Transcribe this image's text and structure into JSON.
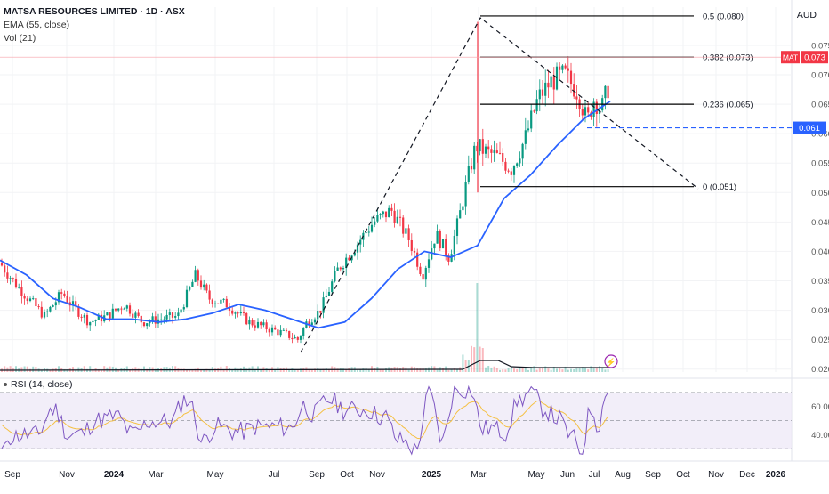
{
  "header": {
    "title": "MATSA RESOURCES LIMITED · 1D · ASX",
    "ema_label": "EMA (55, close)",
    "vol_label": "Vol (21)",
    "currency": "AUD"
  },
  "rsi": {
    "label": "RSI (14, close)",
    "ticks": [
      "60.00",
      "40.00"
    ],
    "upper": 70,
    "lower": 30,
    "mid": 50,
    "range": [
      25,
      75
    ]
  },
  "price_axis": {
    "ticks": [
      "0.075",
      "0.070",
      "0.065",
      "0.060",
      "0.055",
      "0.050",
      "0.045",
      "0.040",
      "0.035",
      "0.030",
      "0.025",
      "0.020"
    ],
    "tick_values": [
      0.075,
      0.07,
      0.065,
      0.06,
      0.055,
      0.05,
      0.045,
      0.04,
      0.035,
      0.03,
      0.025,
      0.02
    ],
    "range": [
      0.0195,
      0.0815
    ]
  },
  "time_axis": {
    "labels": [
      "Sep",
      "Nov",
      "2024",
      "Mar",
      "May",
      "Jul",
      "Sep",
      "Oct",
      "Nov",
      "2025",
      "Mar",
      "May",
      "Jun",
      "Jul",
      "Aug",
      "Sep",
      "Oct",
      "Nov",
      "Dec",
      "2026"
    ],
    "bold": [
      "2024",
      "2025",
      "2026"
    ]
  },
  "badges": {
    "ticker": "MAT",
    "last_price": "0.073",
    "horizontal_line": "0.061"
  },
  "colors": {
    "up": "#089981",
    "down": "#f23645",
    "ema": "#2962ff",
    "rsi": "#7e57c2",
    "rsi_ma": "#f5c042",
    "fib_line": "#000000",
    "dashed_level": "#2962ff",
    "rsi_band": "#ede7f6"
  },
  "chart_data": {
    "type": "candlestick",
    "title": "MATSA RESOURCES LIMITED · 1D · ASX",
    "ylabel": "AUD",
    "ylim": [
      0.02,
      0.08
    ],
    "series": [
      {
        "name": "EMA (55, close)",
        "points": [
          [
            "Aug 2023",
            0.0385
          ],
          [
            "Sep 2023",
            0.036
          ],
          [
            "Oct 2023",
            0.032
          ],
          [
            "Nov 2023",
            0.0305
          ],
          [
            "Dec 2023",
            0.0285
          ],
          [
            "Jan 2024",
            0.0285
          ],
          [
            "Feb 2024",
            0.028
          ],
          [
            "Mar 2024",
            0.0285
          ],
          [
            "Apr 2024",
            0.0295
          ],
          [
            "May 2024",
            0.031
          ],
          [
            "Jun 2024",
            0.03
          ],
          [
            "Jul 2024",
            0.0285
          ],
          [
            "Aug 2024",
            0.027
          ],
          [
            "Sep 2024",
            0.028
          ],
          [
            "Oct 2024",
            0.032
          ],
          [
            "Nov 2024",
            0.037
          ],
          [
            "Dec 2024",
            0.04
          ],
          [
            "Jan 2025",
            0.039
          ],
          [
            "Feb 2025",
            0.041
          ],
          [
            "Mar 2025",
            0.049
          ],
          [
            "Apr 2025",
            0.053
          ],
          [
            "May 2025",
            0.058
          ],
          [
            "Jun 2025",
            0.0625
          ],
          [
            "Jul 2025",
            0.0655
          ]
        ]
      }
    ],
    "fibonacci": [
      {
        "label": "0.5 (0.080)",
        "value": 0.08
      },
      {
        "label": "0.382 (0.073)",
        "value": 0.073
      },
      {
        "label": "0.236 (0.065)",
        "value": 0.065
      },
      {
        "label": "0 (0.051)",
        "value": 0.051
      }
    ],
    "horizontal_line": 0.061,
    "last_price": 0.073
  }
}
